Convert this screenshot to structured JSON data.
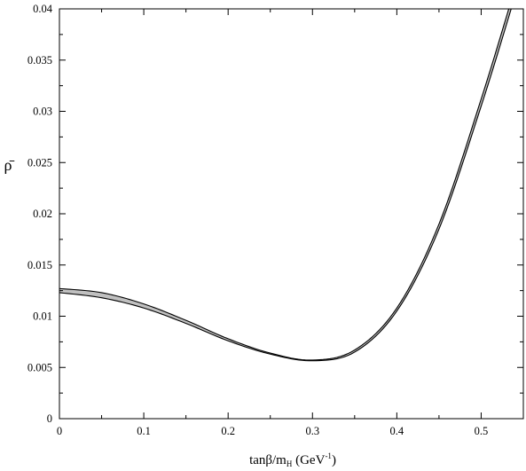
{
  "chart_data": {
    "type": "area",
    "title": "",
    "xlabel": {
      "main": "tanβ/m",
      "sub": "H",
      "unit_open": " (GeV",
      "sup": "-1",
      "unit_close": ")"
    },
    "ylabel": "ρ̄",
    "xlim": [
      0,
      0.55
    ],
    "ylim": [
      0,
      0.04
    ],
    "x_ticks": [
      "0",
      "0.1",
      "0.2",
      "0.3",
      "0.4",
      "0.5"
    ],
    "y_ticks": [
      "0",
      "0.005",
      "0.01",
      "0.015",
      "0.02",
      "0.025",
      "0.03",
      "0.035",
      "0.04"
    ],
    "grid": false,
    "colors": {
      "band_fill": "#c0c0c0",
      "line": "#000000"
    },
    "series": [
      {
        "x": [
          0.0,
          0.05,
          0.1,
          0.15,
          0.2,
          0.25,
          0.3,
          0.35,
          0.4,
          0.45,
          0.5,
          0.54
        ],
        "lower": [
          0.0123,
          0.0118,
          0.0108,
          0.0093,
          0.0076,
          0.0063,
          0.00565,
          0.0065,
          0.0105,
          0.0185,
          0.0305,
          0.0412
        ],
        "upper": [
          0.0127,
          0.0123,
          0.0112,
          0.0096,
          0.0078,
          0.0064,
          0.00572,
          0.0067,
          0.0108,
          0.019,
          0.0312,
          0.042
        ]
      }
    ]
  }
}
